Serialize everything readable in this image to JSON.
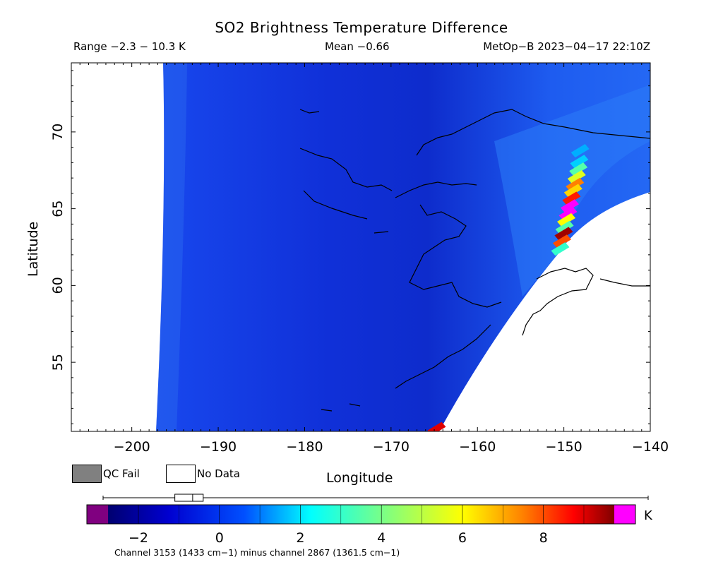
{
  "header": {
    "title": "SO2 Brightness Temperature Difference",
    "range": "Range −2.3 − 10.3 K",
    "mean": "Mean −0.66",
    "satellite": "MetOp−B 2023−04−17 22:10Z"
  },
  "legend": {
    "qc_fail": "QC Fail",
    "no_data": "No Data",
    "qc_fail_color": "#808080",
    "no_data_color": "#ffffff"
  },
  "colorbar": {
    "unit": "K",
    "min": -2.75,
    "max": 9.75,
    "ticks": [
      -2,
      0,
      2,
      4,
      6,
      8
    ],
    "tick_labels": [
      "−2",
      "0",
      "2",
      "4",
      "6",
      "8"
    ],
    "low_overflow_color": "#800080",
    "high_overflow_color": "#ff00ff",
    "range_box": [
      -1.1,
      -0.4
    ]
  },
  "footnote": "Channel 3153 (1433 cm−1) minus channel 2867 (1361.5 cm−1)",
  "chart_data": {
    "type": "heatmap",
    "title": "SO2 Brightness Temperature Difference",
    "xlabel": "Longitude",
    "ylabel": "Latitude",
    "xlim": [
      -207,
      -140
    ],
    "ylim": [
      50.5,
      74.5
    ],
    "x_ticks": [
      -200,
      -190,
      -180,
      -170,
      -160,
      -150,
      -140
    ],
    "x_tick_labels": [
      "−200",
      "−190",
      "−180",
      "−170",
      "−160",
      "−150",
      "−140"
    ],
    "y_ticks": [
      55,
      60,
      65,
      70
    ],
    "y_tick_labels": [
      "55",
      "60",
      "65",
      "70"
    ],
    "value_range": [
      -2.3,
      10.3
    ],
    "mean": -0.66,
    "background_value": -0.66,
    "plume": [
      {
        "lon": -148.2,
        "lat": 68.8,
        "value": 1.5
      },
      {
        "lon": -148.3,
        "lat": 68.1,
        "value": 1.8
      },
      {
        "lon": -148.4,
        "lat": 67.6,
        "value": 3.5
      },
      {
        "lon": -148.6,
        "lat": 67.1,
        "value": 5.5
      },
      {
        "lon": -148.8,
        "lat": 66.6,
        "value": 7.5
      },
      {
        "lon": -149.0,
        "lat": 66.2,
        "value": 6.5
      },
      {
        "lon": -149.2,
        "lat": 65.7,
        "value": 8.5
      },
      {
        "lon": -149.4,
        "lat": 65.2,
        "value": 10.3
      },
      {
        "lon": -149.6,
        "lat": 64.7,
        "value": 9.8
      },
      {
        "lon": -149.8,
        "lat": 64.3,
        "value": 6.0
      },
      {
        "lon": -150.0,
        "lat": 63.8,
        "value": 3.5
      },
      {
        "lon": -150.1,
        "lat": 63.4,
        "value": 9.5
      },
      {
        "lon": -150.3,
        "lat": 62.9,
        "value": 8.0
      },
      {
        "lon": -150.5,
        "lat": 62.4,
        "value": 3.0
      },
      {
        "lon": -164.8,
        "lat": 50.7,
        "value": 9.0
      }
    ]
  }
}
